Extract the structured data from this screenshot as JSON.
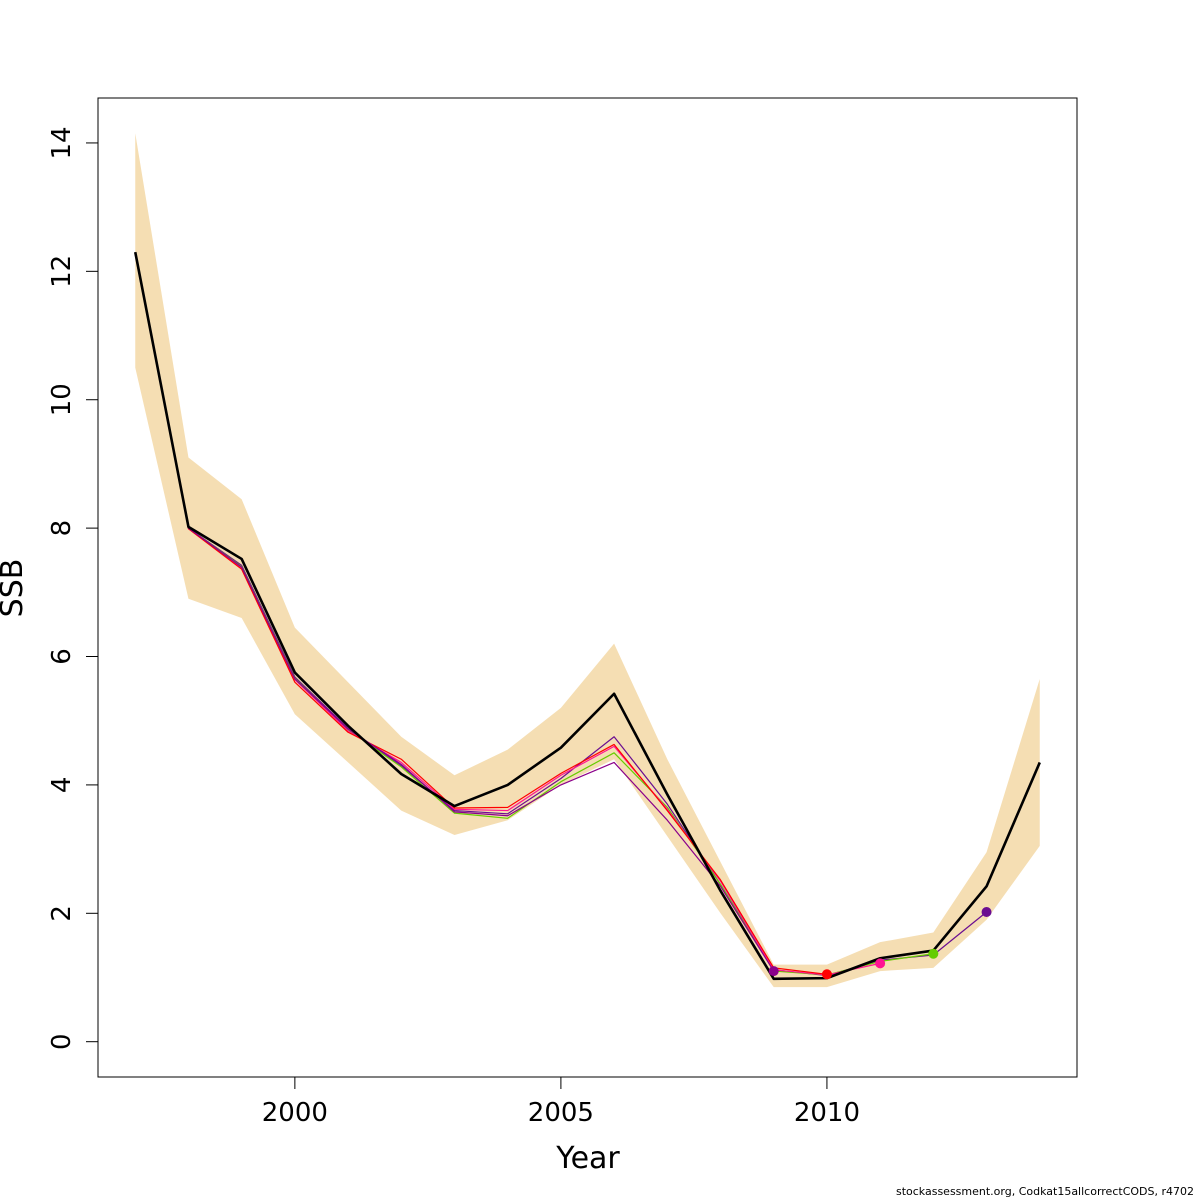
{
  "chart_data": {
    "type": "line",
    "xlabel": "Year",
    "ylabel": "SSB",
    "xlim": [
      1996.3,
      2014.7
    ],
    "ylim": [
      -0.55,
      14.7
    ],
    "x_ticks": [
      2000,
      2005,
      2010
    ],
    "y_ticks": [
      0,
      2,
      4,
      6,
      8,
      10,
      12,
      14
    ],
    "grid": false,
    "legend": "none",
    "confidence_band": {
      "color": "#f5deb3",
      "x": [
        1997,
        1998,
        1999,
        2000,
        2001,
        2002,
        2003,
        2004,
        2005,
        2006,
        2007,
        2008,
        2009,
        2010,
        2011,
        2012,
        2013,
        2014
      ],
      "lower": [
        10.5,
        6.9,
        6.6,
        5.1,
        4.35,
        3.6,
        3.22,
        3.45,
        4.0,
        4.4,
        3.2,
        2.0,
        0.85,
        0.85,
        1.1,
        1.15,
        1.9,
        3.05
      ],
      "upper": [
        14.15,
        9.1,
        8.45,
        6.45,
        5.6,
        4.75,
        4.15,
        4.55,
        5.2,
        6.2,
        4.4,
        2.8,
        1.2,
        1.2,
        1.55,
        1.7,
        2.95,
        5.65
      ]
    },
    "series": [
      {
        "color": "#000000",
        "width": 2.6,
        "x": [
          1997,
          1998,
          1999,
          2000,
          2001,
          2002,
          2003,
          2004,
          2005,
          2006,
          2007,
          2008,
          2009,
          2010,
          2011,
          2012,
          2013,
          2014
        ],
        "values": [
          12.3,
          8.02,
          7.52,
          5.75,
          4.92,
          4.17,
          3.67,
          4.0,
          4.58,
          5.42,
          3.85,
          2.35,
          0.98,
          0.99,
          1.3,
          1.42,
          2.42,
          4.35
        ]
      },
      {
        "color": "#6a0d91",
        "width": 1.2,
        "x": [
          1997,
          1998,
          1999,
          2000,
          2001,
          2002,
          2003,
          2004,
          2005,
          2006,
          2007,
          2008,
          2009,
          2010,
          2011,
          2012,
          2013
        ],
        "values": [
          12.28,
          8.0,
          7.42,
          5.68,
          4.88,
          4.3,
          3.6,
          3.55,
          4.1,
          4.75,
          3.7,
          2.45,
          1.12,
          1.03,
          1.27,
          1.35,
          2.02
        ],
        "endpoint": true
      },
      {
        "color": "#66cc00",
        "width": 1.2,
        "x": [
          1997,
          1998,
          1999,
          2000,
          2001,
          2002,
          2003,
          2004,
          2005,
          2006,
          2007,
          2008,
          2009,
          2010,
          2011,
          2012
        ],
        "values": [
          12.27,
          8.0,
          7.4,
          5.66,
          4.86,
          4.28,
          3.56,
          3.48,
          4.05,
          4.5,
          3.65,
          2.45,
          1.1,
          1.04,
          1.25,
          1.37
        ],
        "endpoint": true
      },
      {
        "color": "#ff1493",
        "width": 1.2,
        "x": [
          1997,
          1998,
          1999,
          2000,
          2001,
          2002,
          2003,
          2004,
          2005,
          2006,
          2007,
          2008,
          2009,
          2010,
          2011
        ],
        "values": [
          12.27,
          8.0,
          7.38,
          5.64,
          4.84,
          4.35,
          3.62,
          3.6,
          4.15,
          4.6,
          3.62,
          2.5,
          1.12,
          1.04,
          1.22
        ],
        "endpoint": true
      },
      {
        "color": "#ff0000",
        "width": 1.2,
        "x": [
          1997,
          1998,
          1999,
          2000,
          2001,
          2002,
          2003,
          2004,
          2005,
          2006,
          2007,
          2008,
          2009,
          2010
        ],
        "values": [
          12.28,
          7.99,
          7.36,
          5.6,
          4.82,
          4.4,
          3.64,
          3.65,
          4.18,
          4.63,
          3.6,
          2.52,
          1.15,
          1.05
        ],
        "endpoint": true
      },
      {
        "color": "#8b008b",
        "width": 1.2,
        "x": [
          1997,
          1998,
          1999,
          2000,
          2001,
          2002,
          2003,
          2004,
          2005,
          2006,
          2007,
          2008,
          2009
        ],
        "values": [
          12.27,
          8.0,
          7.39,
          5.65,
          4.87,
          4.32,
          3.58,
          3.52,
          4.0,
          4.35,
          3.45,
          2.42,
          1.1
        ],
        "endpoint": true
      }
    ]
  },
  "footnote": "stockassessment.org, Codkat15allcorrectCODS, r4702"
}
